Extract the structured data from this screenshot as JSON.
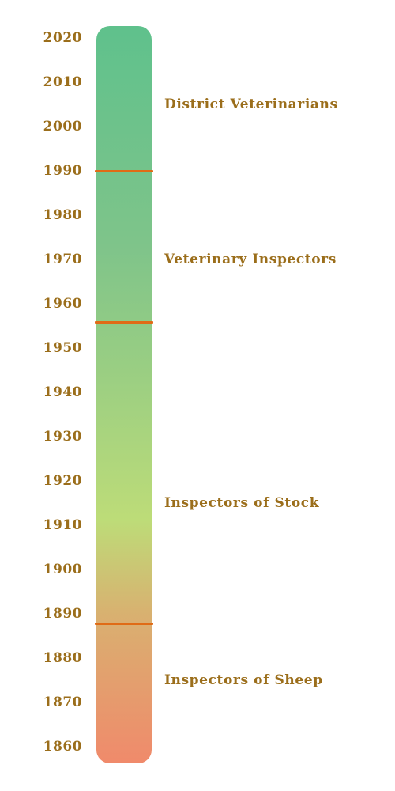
{
  "years": [
    "2020",
    "2010",
    "2000",
    "1990",
    "1980",
    "1970",
    "1960",
    "1950",
    "1940",
    "1930",
    "1920",
    "1910",
    "1900",
    "1890",
    "1880",
    "1870",
    "1860"
  ],
  "eras": [
    {
      "label": "District Veterinarians"
    },
    {
      "label": "Veterinary Inspectors"
    },
    {
      "label": "Inspectors of Stock"
    },
    {
      "label": "Inspectors of Sheep"
    }
  ],
  "era_boundaries": [
    1990,
    1956,
    1888
  ],
  "axis": {
    "min": 1860,
    "max": 2020
  },
  "colors": {
    "text": "#9b6e1b",
    "divider": "#e06b16",
    "gradient_top": "#5fc18c",
    "gradient_middle": "#bddc78",
    "gradient_bottom": "#f08a6b"
  }
}
